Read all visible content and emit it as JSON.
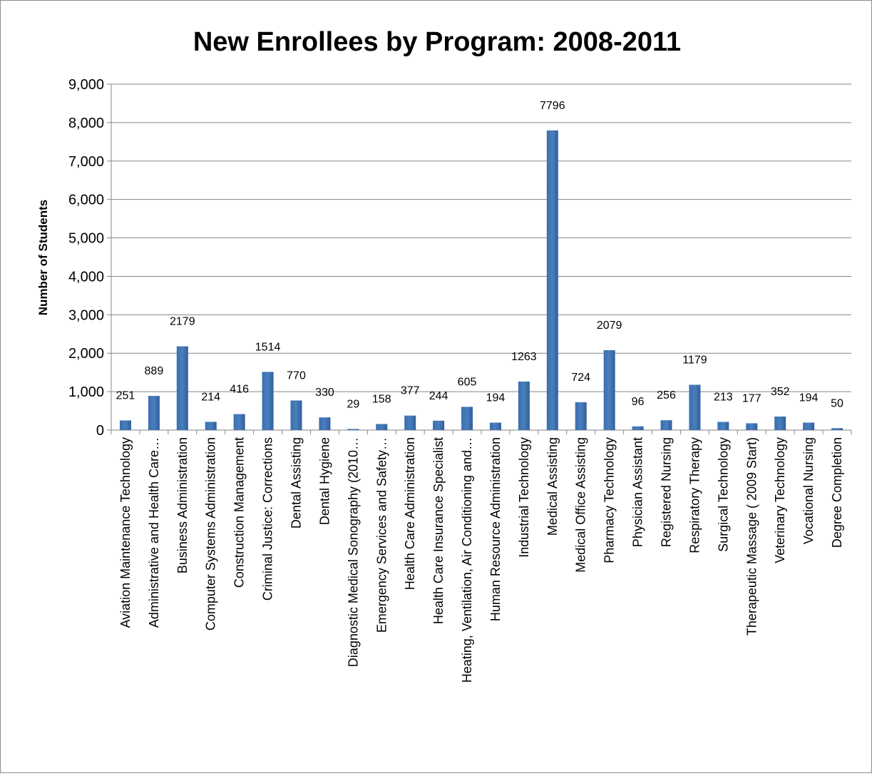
{
  "chart_data": {
    "type": "bar",
    "title": "New Enrollees by Program: 2008-2011",
    "xlabel": "",
    "ylabel": "Number of Students",
    "ylim": [
      0,
      9000
    ],
    "yticks": [
      "0",
      "1,000",
      "2,000",
      "3,000",
      "4,000",
      "5,000",
      "6,000",
      "7,000",
      "8,000",
      "9,000"
    ],
    "grid": true,
    "legend": "none",
    "bar_color": "#4a7ebb",
    "categories": [
      "Aviation Maintenance Technology",
      "Administrative and Health Care…",
      "Business Administration",
      "Computer Systems Administration",
      "Construction Management",
      "Criminal Justice: Corrections",
      "Dental Assisting",
      "Dental Hygiene",
      "Diagnostic Medical Sonography (2010…",
      "Emergency Services and Safety…",
      "Health Care Administration",
      "Health Care Insurance Specialist",
      "Heating, Ventilation, Air Conditioning and…",
      "Human Resource Administration",
      "Industrial Technology",
      "Medical Assisting",
      "Medical Office Assisting",
      "Pharmacy Technology",
      "Physician Assistant",
      "Registered Nursing",
      "Respiratory Therapy",
      "Surgical Technology",
      "Therapeutic Massage ( 2009 Start)",
      "Veterinary Technology",
      "Vocational Nursing",
      "Degree Completion"
    ],
    "values": [
      251,
      889,
      2179,
      214,
      416,
      1514,
      770,
      330,
      29,
      158,
      377,
      244,
      605,
      194,
      1263,
      7796,
      724,
      2079,
      96,
      256,
      1179,
      213,
      177,
      352,
      194,
      50
    ]
  }
}
